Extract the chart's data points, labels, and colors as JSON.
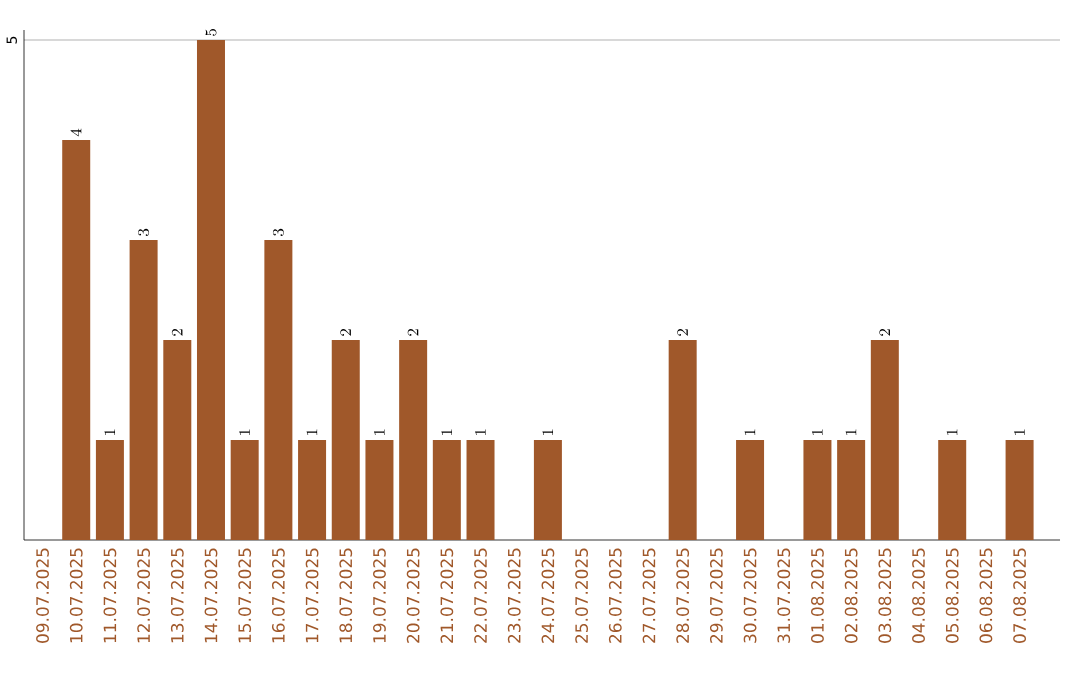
{
  "chart_data": {
    "type": "bar",
    "categories": [
      "09.07.2025",
      "10.07.2025",
      "11.07.2025",
      "12.07.2025",
      "13.07.2025",
      "14.07.2025",
      "15.07.2025",
      "16.07.2025",
      "17.07.2025",
      "18.07.2025",
      "19.07.2025",
      "20.07.2025",
      "21.07.2025",
      "22.07.2025",
      "23.07.2025",
      "24.07.2025",
      "25.07.2025",
      "26.07.2025",
      "27.07.2025",
      "28.07.2025",
      "29.07.2025",
      "30.07.2025",
      "31.07.2025",
      "01.08.2025",
      "02.08.2025",
      "03.08.2025",
      "04.08.2025",
      "05.08.2025",
      "06.08.2025",
      "07.08.2025"
    ],
    "values": [
      null,
      4,
      1,
      3,
      2,
      5,
      1,
      3,
      1,
      2,
      1,
      2,
      1,
      1,
      null,
      1,
      null,
      null,
      null,
      2,
      null,
      1,
      null,
      1,
      1,
      2,
      null,
      1,
      null,
      1
    ],
    "color": "#a0582a",
    "ylim": [
      0,
      5.1
    ],
    "yticks": [
      5
    ],
    "grid": "y",
    "data_labels": true
  }
}
